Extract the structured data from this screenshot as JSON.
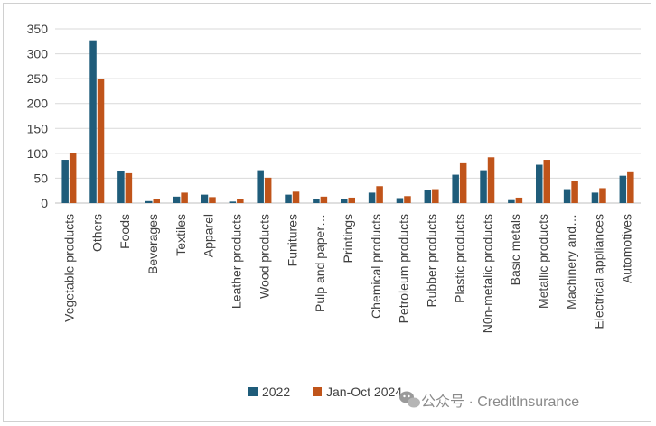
{
  "chart_data": {
    "type": "bar",
    "title": "",
    "xlabel": "",
    "ylabel": "",
    "ylim": [
      0,
      350
    ],
    "yticks": [
      0,
      50,
      100,
      150,
      200,
      250,
      300,
      350
    ],
    "grid": true,
    "legend_position": "bottom",
    "categories": [
      "Vegetable products",
      "Others",
      "Foods",
      "Beverages",
      "Textiles",
      "Apparel",
      "Leather products",
      "Wood products",
      "Funitures",
      "Pulp and paper…",
      "Printings",
      "Chemical products",
      "Petroleum products",
      "Rubber products",
      "Plastic products",
      "N0n-metalic products",
      "Basic metals",
      "Metallic products",
      "Machinery and…",
      "Electrical appliances",
      "Automotives"
    ],
    "series": [
      {
        "name": "2022",
        "color": "#1f5c7a",
        "values": [
          87,
          327,
          64,
          4,
          13,
          17,
          3,
          66,
          17,
          8,
          8,
          21,
          10,
          26,
          57,
          66,
          6,
          77,
          28,
          21,
          55
        ]
      },
      {
        "name": "Jan-Oct 2024",
        "color": "#c0541a",
        "values": [
          101,
          250,
          60,
          8,
          21,
          12,
          8,
          51,
          23,
          13,
          11,
          34,
          14,
          28,
          80,
          92,
          11,
          87,
          44,
          30,
          62
        ]
      }
    ]
  },
  "watermark": {
    "icon": "wechat-icon",
    "text": "公众号 · CreditInsurance"
  }
}
